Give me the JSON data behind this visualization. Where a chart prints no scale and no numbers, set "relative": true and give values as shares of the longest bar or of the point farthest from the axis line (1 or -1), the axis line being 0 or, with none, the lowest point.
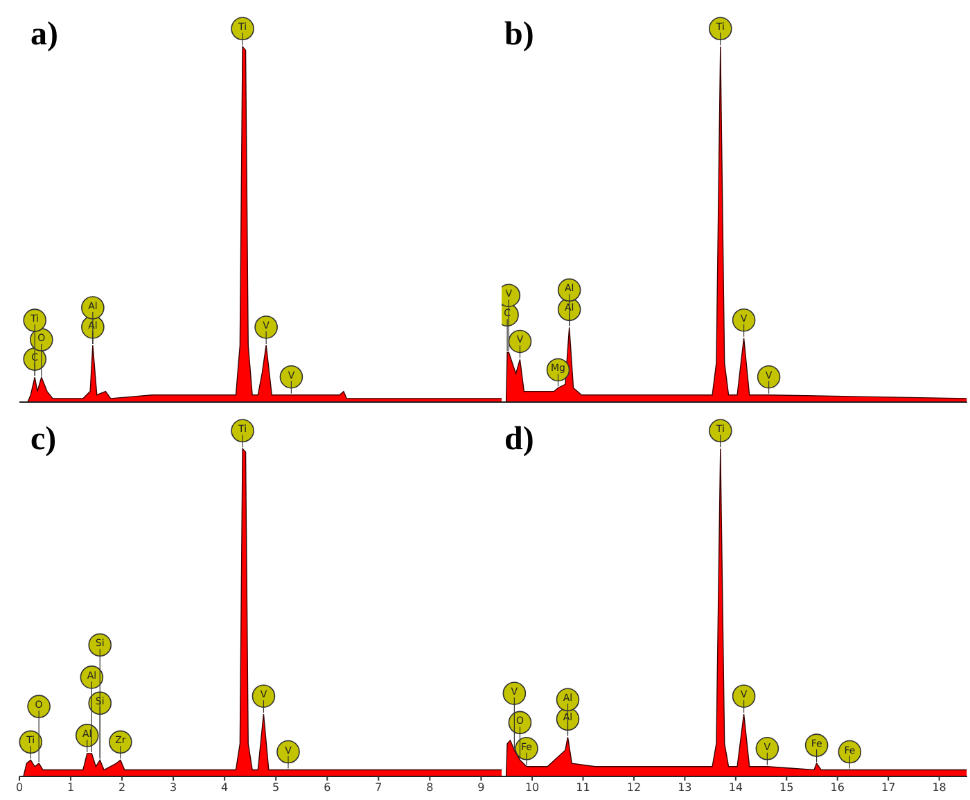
{
  "chart_data": [
    {
      "type": "area",
      "title": "a)",
      "relative": true,
      "xlim": [
        0,
        9.4
      ],
      "x": [
        0.16,
        0.22,
        0.3,
        0.35,
        0.43,
        0.54,
        0.65,
        1.24,
        1.38,
        1.43,
        1.51,
        1.68,
        1.78,
        2.59,
        4.22,
        4.3,
        4.35,
        4.41,
        4.46,
        4.54,
        4.65,
        4.73,
        4.81,
        4.92,
        5.3,
        6.24,
        6.32,
        6.38,
        9.4
      ],
      "series": [
        {
          "color": "#ff0000",
          "values": [
            0,
            0.02,
            0.07,
            0.03,
            0.07,
            0.03,
            0.01,
            0.01,
            0.03,
            0.16,
            0.02,
            0.03,
            0.01,
            0.02,
            0.02,
            0.16,
            1.0,
            0.99,
            0.16,
            0.02,
            0.02,
            0.08,
            0.16,
            0.02,
            0.02,
            0.02,
            0.03,
            0.01,
            0.01
          ]
        }
      ],
      "annotations": [
        {
          "text": "C",
          "x": 0.3,
          "y": 0.07
        },
        {
          "text": "O",
          "x": 0.43,
          "y": 0.07
        },
        {
          "text": "Ti",
          "x": 0.3,
          "y": 0.07
        },
        {
          "text": "Al",
          "x": 1.43,
          "y": 0.16
        },
        {
          "text": "Al",
          "x": 1.43,
          "y": 0.16
        },
        {
          "text": "V",
          "x": 4.81,
          "y": 0.16
        },
        {
          "text": "V",
          "x": 5.3,
          "y": 0.02
        },
        {
          "text": "Ti",
          "x": 4.35,
          "y": 1.0
        }
      ]
    },
    {
      "type": "area",
      "title": "b)",
      "relative": true,
      "xlim": [
        9.4,
        18.55
      ],
      "x": [
        9.49,
        9.51,
        9.54,
        9.68,
        9.76,
        9.84,
        10.43,
        10.51,
        10.65,
        10.73,
        10.81,
        10.97,
        13.54,
        13.62,
        13.7,
        13.78,
        13.86,
        14.03,
        14.16,
        14.27,
        14.65,
        18.54
      ],
      "series": [
        {
          "color": "#ff0000",
          "values": [
            0,
            0.14,
            0.14,
            0.08,
            0.12,
            0.03,
            0.03,
            0.04,
            0.05,
            0.21,
            0.04,
            0.02,
            0.02,
            0.11,
            1.0,
            0.11,
            0.02,
            0.02,
            0.18,
            0.02,
            0.02,
            0.01
          ]
        }
      ],
      "annotations": [
        {
          "text": "V",
          "x": 9.76,
          "y": 0.12
        },
        {
          "text": "C",
          "x": 9.51,
          "y": 0.14
        },
        {
          "text": "V",
          "x": 9.54,
          "y": 0.14
        },
        {
          "text": "Mg",
          "x": 10.51,
          "y": 0.04
        },
        {
          "text": "Al",
          "x": 10.73,
          "y": 0.21
        },
        {
          "text": "Al",
          "x": 10.73,
          "y": 0.21
        },
        {
          "text": "V",
          "x": 14.16,
          "y": 0.18
        },
        {
          "text": "V",
          "x": 14.65,
          "y": 0.02
        },
        {
          "text": "Ti",
          "x": 13.7,
          "y": 1.0
        }
      ]
    },
    {
      "type": "area",
      "title": "c)",
      "relative": true,
      "xlim": [
        0,
        9.4
      ],
      "xticks": [
        0,
        1,
        2,
        3,
        4,
        5,
        6,
        7,
        8,
        9
      ],
      "x": [
        0.08,
        0.14,
        0.22,
        0.3,
        0.38,
        0.46,
        0.7,
        1.24,
        1.32,
        1.41,
        1.49,
        1.57,
        1.65,
        1.89,
        1.97,
        2.05,
        4.22,
        4.3,
        4.35,
        4.41,
        4.46,
        4.54,
        4.65,
        4.76,
        4.86,
        5.24,
        9.4
      ],
      "series": [
        {
          "color": "#ff0000",
          "values": [
            0,
            0.04,
            0.05,
            0.03,
            0.04,
            0.02,
            0.02,
            0.02,
            0.07,
            0.07,
            0.03,
            0.05,
            0.02,
            0.04,
            0.05,
            0.02,
            0.02,
            0.1,
            1.0,
            0.99,
            0.1,
            0.02,
            0.02,
            0.19,
            0.02,
            0.02,
            0.02
          ]
        }
      ],
      "annotations": [
        {
          "text": "Ti",
          "x": 0.22,
          "y": 0.05
        },
        {
          "text": "O",
          "x": 0.38,
          "y": 0.04
        },
        {
          "text": "Al",
          "x": 1.32,
          "y": 0.07
        },
        {
          "text": "Si",
          "x": 1.57,
          "y": 0.05
        },
        {
          "text": "Zr",
          "x": 1.97,
          "y": 0.05
        },
        {
          "text": "Al",
          "x": 1.41,
          "y": 0.07
        },
        {
          "text": "Si",
          "x": 1.57,
          "y": 0.05
        },
        {
          "text": "V",
          "x": 4.76,
          "y": 0.19
        },
        {
          "text": "V",
          "x": 5.24,
          "y": 0.02
        },
        {
          "text": "Ti",
          "x": 4.35,
          "y": 1.0
        }
      ]
    },
    {
      "type": "area",
      "title": "d)",
      "relative": true,
      "xlim": [
        9.4,
        18.55
      ],
      "xticks": [
        10,
        11,
        12,
        13,
        14,
        15,
        16,
        17,
        18
      ],
      "x": [
        9.49,
        9.51,
        9.57,
        9.65,
        9.76,
        9.89,
        10.3,
        10.65,
        10.7,
        10.78,
        11.24,
        13.54,
        13.62,
        13.7,
        13.78,
        13.86,
        14.03,
        14.16,
        14.27,
        14.62,
        15.54,
        15.59,
        15.68,
        16.24,
        18.54
      ],
      "series": [
        {
          "color": "#ff0000",
          "values": [
            0,
            0.1,
            0.11,
            0.08,
            0.05,
            0.03,
            0.03,
            0.08,
            0.12,
            0.04,
            0.03,
            0.03,
            0.1,
            1.0,
            0.1,
            0.03,
            0.03,
            0.19,
            0.03,
            0.03,
            0.02,
            0.04,
            0.02,
            0.02,
            0.02
          ]
        }
      ],
      "annotations": [
        {
          "text": "Fe",
          "x": 9.89,
          "y": 0.03
        },
        {
          "text": "O",
          "x": 9.76,
          "y": 0.05
        },
        {
          "text": "V",
          "x": 9.65,
          "y": 0.08
        },
        {
          "text": "Al",
          "x": 10.7,
          "y": 0.12
        },
        {
          "text": "Al",
          "x": 10.7,
          "y": 0.12
        },
        {
          "text": "V",
          "x": 14.16,
          "y": 0.19
        },
        {
          "text": "V",
          "x": 14.62,
          "y": 0.03
        },
        {
          "text": "Fe",
          "x": 15.59,
          "y": 0.04
        },
        {
          "text": "Fe",
          "x": 16.24,
          "y": 0.02
        },
        {
          "text": "Ti",
          "x": 13.7,
          "y": 1.0
        }
      ]
    }
  ]
}
